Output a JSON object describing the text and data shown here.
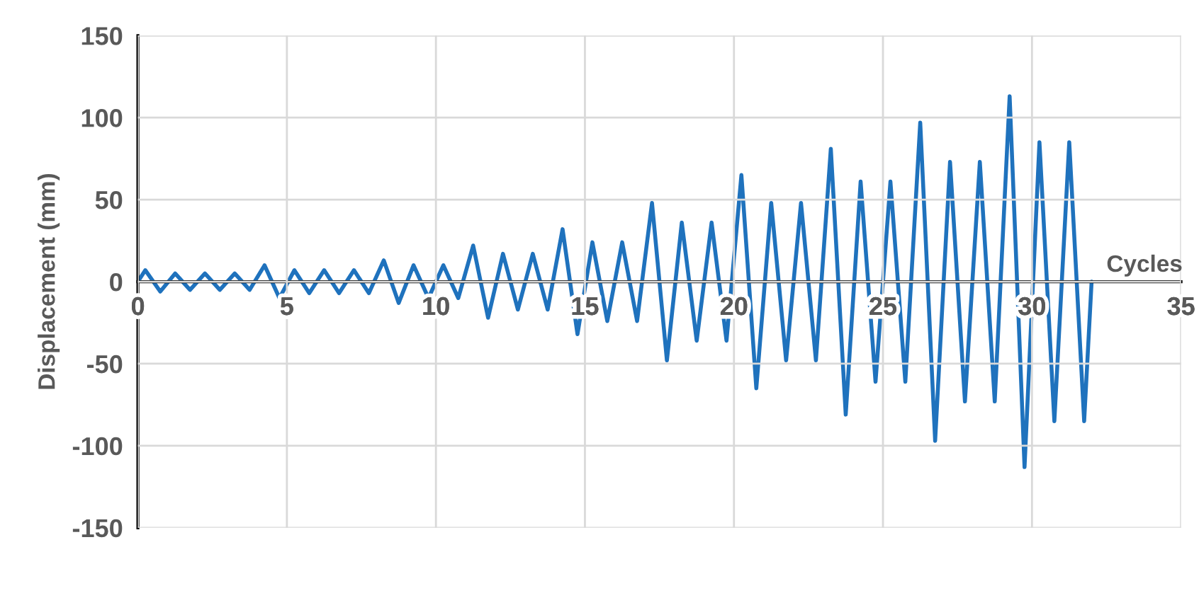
{
  "chart_data": {
    "type": "line",
    "xlabel": "Cycles",
    "ylabel": "Displacement (mm)",
    "x": [
      0,
      0.25,
      0.75,
      1.25,
      1.75,
      2.25,
      2.75,
      3.25,
      3.75,
      4.25,
      4.75,
      5.25,
      5.75,
      6.25,
      6.75,
      7.25,
      7.75,
      8.25,
      8.75,
      9.25,
      9.75,
      10.25,
      10.75,
      11.25,
      11.75,
      12.25,
      12.75,
      13.25,
      13.75,
      14.25,
      14.75,
      15.25,
      15.75,
      16.25,
      16.75,
      17.25,
      17.75,
      18.25,
      18.75,
      19.25,
      19.75,
      20.25,
      20.75,
      21.25,
      21.75,
      22.25,
      22.75,
      23.25,
      23.75,
      24.25,
      24.75,
      25.25,
      25.75,
      26.25,
      26.75,
      27.25,
      27.75,
      28.25,
      28.75,
      29.25,
      29.75,
      30.25,
      30.75,
      31.25,
      31.75,
      32
    ],
    "series": [
      {
        "color": "#1f72bd",
        "values": [
          0,
          7,
          -6,
          5,
          -5,
          5,
          -5,
          5,
          -5,
          10,
          -10,
          7,
          -7,
          7,
          -7,
          7,
          -7,
          13,
          -13,
          10,
          -10,
          10,
          -10,
          22,
          -22,
          17,
          -17,
          17,
          -17,
          32,
          -32,
          24,
          -24,
          24,
          -24,
          48,
          -48,
          36,
          -36,
          36,
          -36,
          65,
          -65,
          48,
          -48,
          48,
          -48,
          81,
          -81,
          61,
          -61,
          61,
          -61,
          97,
          -97,
          73,
          -73,
          73,
          -73,
          113,
          -113,
          85,
          -85,
          85,
          -85,
          0
        ]
      }
    ],
    "xlim": [
      0,
      35
    ],
    "ylim": [
      -150,
      150
    ],
    "xticks": [
      0,
      5,
      10,
      15,
      20,
      25,
      30,
      35
    ],
    "yticks": [
      -150,
      -100,
      -50,
      0,
      50,
      100,
      150
    ],
    "grid": true,
    "marker": "none",
    "line_style": "solid"
  }
}
